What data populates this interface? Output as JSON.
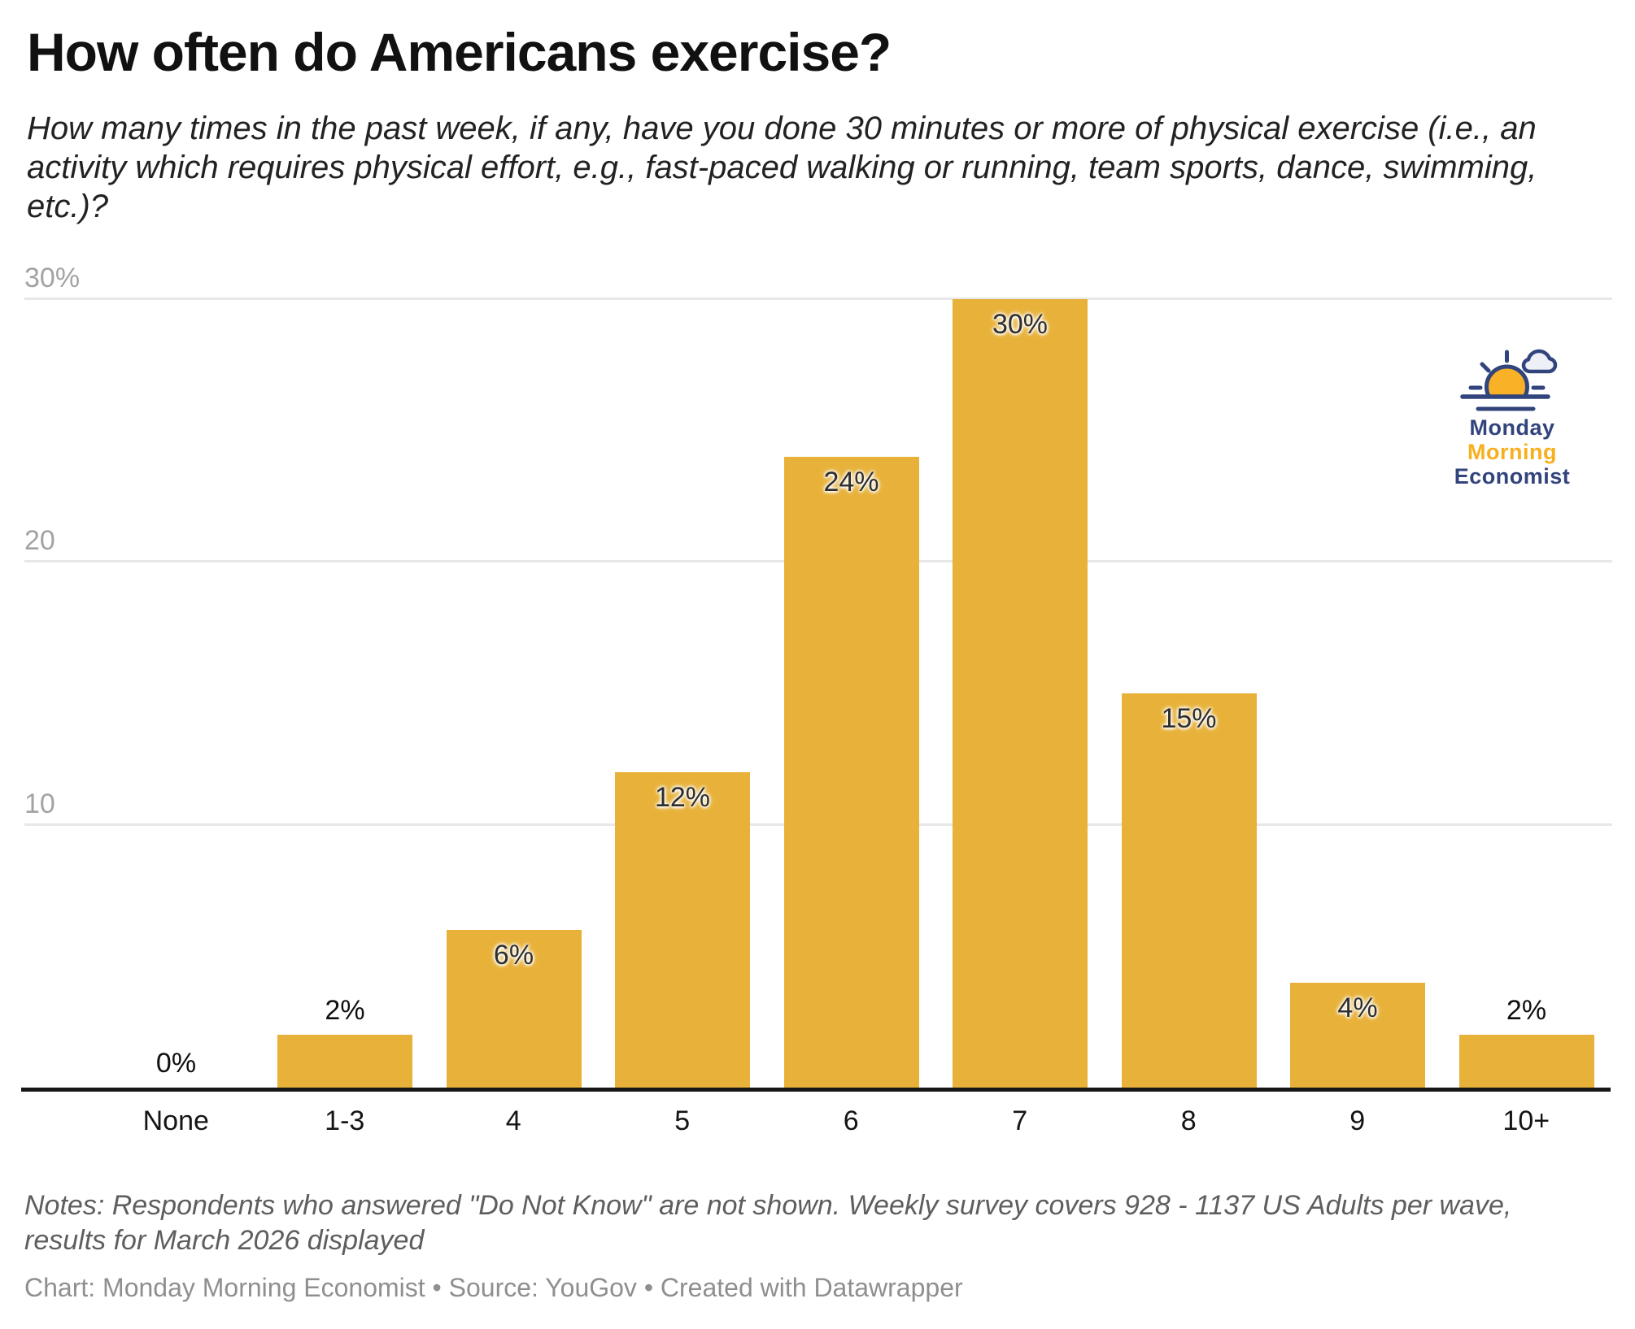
{
  "header": {
    "title": "How often do Americans exercise?",
    "subtitle_lines": [
      "How many times in the past week, if any, have you done 30 minutes or more of physical exercise (i.e., an",
      "activity which requires physical effort, e.g., fast-paced walking or running, team sports, dance, swimming,",
      "etc.)?"
    ]
  },
  "chart_data": {
    "type": "bar",
    "title": "How often do Americans exercise?",
    "categories": [
      "None",
      "1-3",
      "4",
      "5",
      "6",
      "7",
      "8",
      "9",
      "10+"
    ],
    "values": [
      0,
      2,
      6,
      12,
      24,
      30,
      15,
      4,
      2
    ],
    "value_labels": [
      "0%",
      "2%",
      "6%",
      "12%",
      "24%",
      "30%",
      "15%",
      "4%",
      "2%"
    ],
    "xlabel": "",
    "ylabel": "",
    "ylim": [
      0,
      30
    ],
    "yticks": [
      {
        "value": 10,
        "label": "10"
      },
      {
        "value": 20,
        "label": "20"
      },
      {
        "value": 30,
        "label": "30%"
      }
    ],
    "grid": "horizontal",
    "legend": "none",
    "bar_color": "#E8B23A"
  },
  "logo": {
    "lines": [
      {
        "text": "Monday",
        "color": "#32447C"
      },
      {
        "text": "Morning",
        "color": "#F6B01F"
      },
      {
        "text": "Economist",
        "color": "#32447C"
      }
    ],
    "brand_navy": "#32447C",
    "brand_yellow": "#F6B01F"
  },
  "notes_lines": [
    "Notes: Respondents who answered \"Do Not Know\" are not shown. Weekly survey covers 928 - 1137 US Adults per wave,",
    "results for March 2026 displayed"
  ],
  "footer": "Chart: Monday Morning Economist • Source: YouGov • Created with Datawrapper"
}
